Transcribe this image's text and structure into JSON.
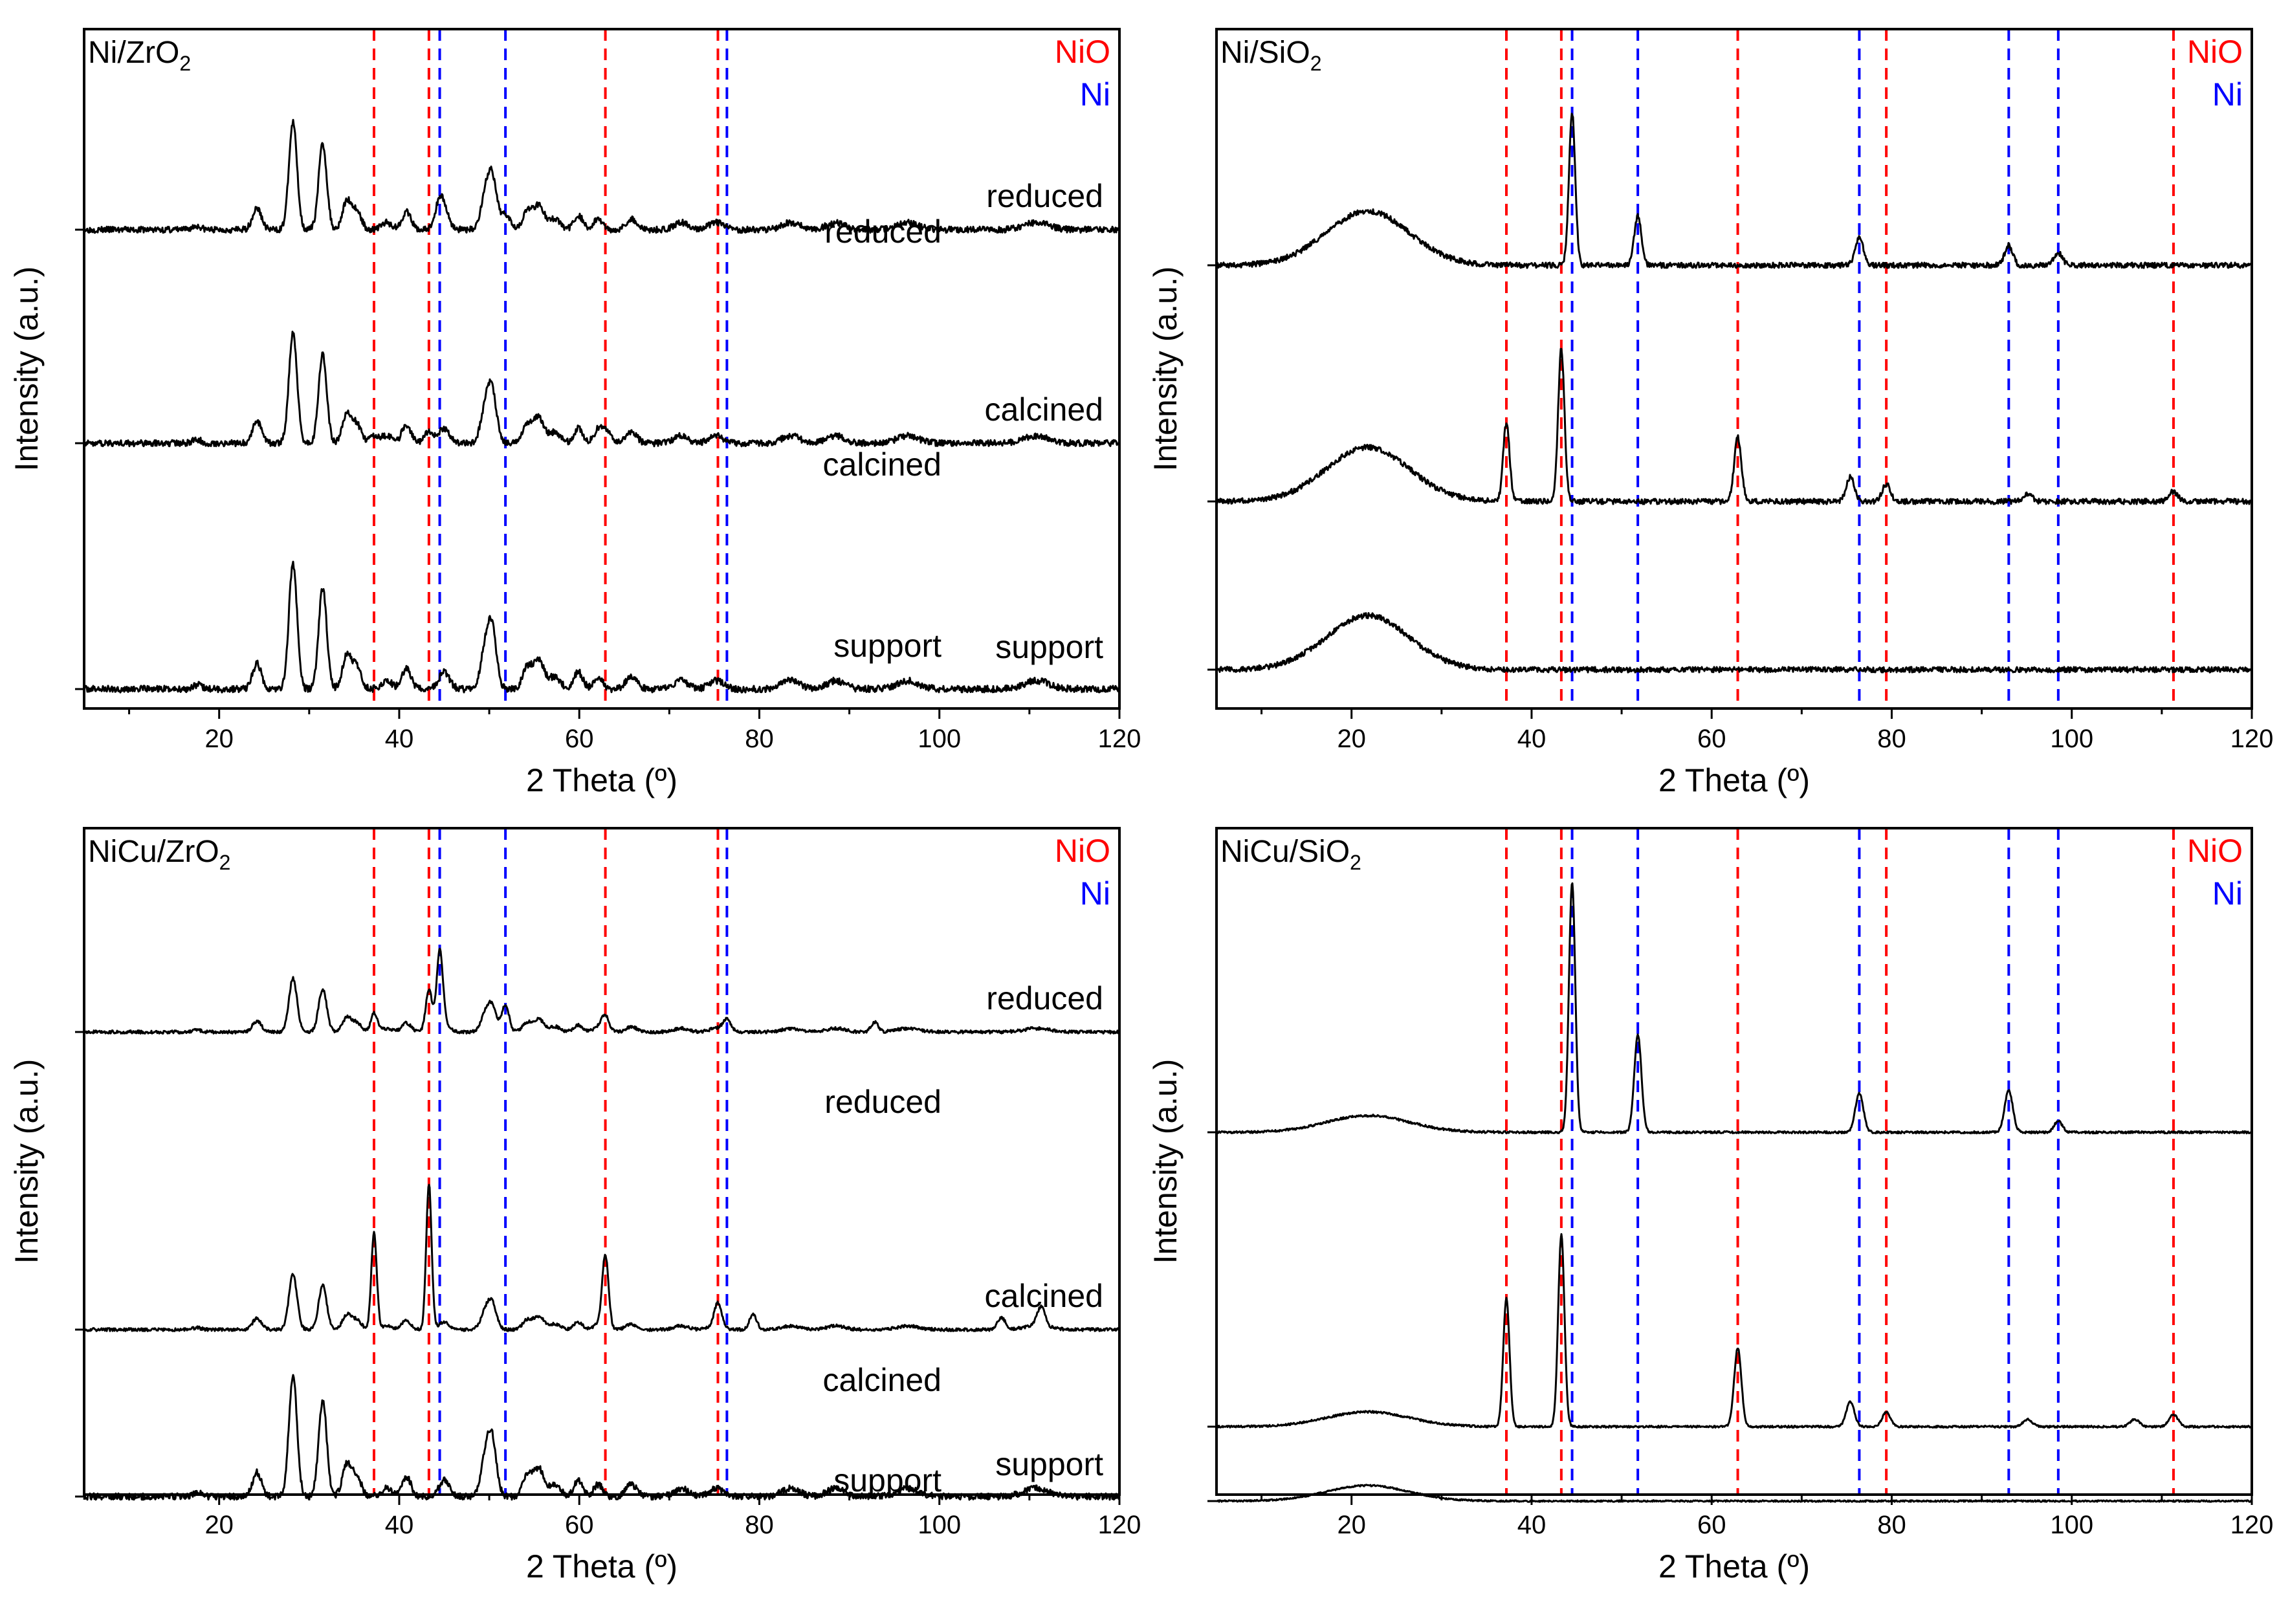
{
  "chart_data": [
    {
      "type": "line",
      "title": "Ni/ZrO2",
      "title_base": "Ni/ZrO",
      "title_sub": "2",
      "xlabel": "2 Theta (º)",
      "ylabel": "Intensity (a.u.)",
      "xlim": [
        5,
        120
      ],
      "xticks": [
        20,
        40,
        60,
        80,
        100,
        120
      ],
      "legend": [
        {
          "label": "NiO",
          "color": "#ff0000"
        },
        {
          "label": "Ni",
          "color": "#0000ff"
        }
      ],
      "reference_lines": [
        {
          "phase": "NiO",
          "color": "#ff0000",
          "x": [
            37.2,
            43.3,
            62.9,
            75.4
          ]
        },
        {
          "phase": "Ni",
          "color": "#0000ff",
          "x": [
            44.5,
            51.8,
            76.4
          ]
        }
      ],
      "support": "zro2",
      "series": [
        {
          "name": "reduced",
          "label_color": "#000000",
          "extra_peaks": [],
          "ni_peaks": [
            [
              44.5,
              6,
              0.5
            ],
            [
              51.8,
              4,
              0.6
            ]
          ]
        },
        {
          "name": "calcined",
          "extra_peaks": [],
          "ni_peaks": [
            [
              37.2,
              2,
              0.5
            ],
            [
              43.3,
              3,
              0.5
            ],
            [
              62.9,
              3,
              0.6
            ]
          ]
        },
        {
          "name": "support",
          "extra_peaks": [],
          "ni_peaks": []
        }
      ]
    },
    {
      "type": "line",
      "title": "Ni/SiO2",
      "title_base": "Ni/SiO",
      "title_sub": "2",
      "xlabel": "2 Theta (º)",
      "ylabel": "Intensity (a.u.)",
      "xlim": [
        5,
        120
      ],
      "xticks": [
        20,
        40,
        60,
        80,
        100,
        120
      ],
      "legend": [
        {
          "label": "NiO",
          "color": "#ff0000"
        },
        {
          "label": "Ni",
          "color": "#0000ff"
        }
      ],
      "reference_lines": [
        {
          "phase": "NiO",
          "color": "#ff0000",
          "x": [
            37.2,
            43.3,
            62.9,
            79.4,
            111.3
          ]
        },
        {
          "phase": "Ni",
          "color": "#0000ff",
          "x": [
            44.5,
            51.8,
            76.4,
            93.0,
            98.5
          ]
        }
      ],
      "support": "sio2",
      "series": [
        {
          "name": "reduced",
          "ni_peaks": [
            [
              44.5,
              62,
              0.35
            ],
            [
              51.8,
              20,
              0.4
            ],
            [
              76.4,
              11,
              0.45
            ],
            [
              93.0,
              8,
              0.45
            ],
            [
              98.5,
              5,
              0.45
            ]
          ]
        },
        {
          "name": "calcined",
          "ni_peaks": [
            [
              37.2,
              32,
              0.35
            ],
            [
              43.3,
              62,
              0.35
            ],
            [
              62.9,
              26,
              0.4
            ],
            [
              75.4,
              10,
              0.45
            ],
            [
              79.4,
              7,
              0.45
            ],
            [
              95.1,
              3,
              0.5
            ],
            [
              111.3,
              4,
              0.5
            ]
          ]
        },
        {
          "name": "support",
          "ni_peaks": []
        }
      ]
    },
    {
      "type": "line",
      "title": "NiCu/ZrO2",
      "title_base": "NiCu/ZrO",
      "title_sub": "2",
      "xlabel": "2 Theta (º)",
      "ylabel": "Intensity (a.u.)",
      "xlim": [
        5,
        120
      ],
      "xticks": [
        20,
        40,
        60,
        80,
        100,
        120
      ],
      "legend": [
        {
          "label": "NiO",
          "color": "#ff0000"
        },
        {
          "label": "Ni",
          "color": "#0000ff"
        }
      ],
      "reference_lines": [
        {
          "phase": "NiO",
          "color": "#ff0000",
          "x": [
            37.2,
            43.3,
            62.9,
            75.4
          ]
        },
        {
          "phase": "Ni",
          "color": "#0000ff",
          "x": [
            44.5,
            51.8,
            76.4
          ]
        }
      ],
      "support": "zro2",
      "series": [
        {
          "name": "reduced",
          "ni_peaks": [
            [
              37.2,
              10,
              0.35
            ],
            [
              43.3,
              22,
              0.35
            ],
            [
              44.5,
              40,
              0.35
            ],
            [
              51.8,
              14,
              0.4
            ],
            [
              62.9,
              8,
              0.4
            ],
            [
              76.4,
              6,
              0.45
            ],
            [
              92.8,
              5,
              0.4
            ]
          ]
        },
        {
          "name": "calcined",
          "ni_peaks": [
            [
              37.2,
              50,
              0.3
            ],
            [
              43.3,
              75,
              0.3
            ],
            [
              62.9,
              38,
              0.35
            ],
            [
              75.4,
              12,
              0.4
            ],
            [
              79.3,
              8,
              0.4
            ],
            [
              106.9,
              6,
              0.45
            ],
            [
              111.3,
              10,
              0.45
            ]
          ]
        },
        {
          "name": "support",
          "ni_peaks": []
        }
      ]
    },
    {
      "type": "line",
      "title": "NiCu/SiO2",
      "title_base": "NiCu/SiO",
      "title_sub": "2",
      "xlabel": "2 Theta (º)",
      "ylabel": "Intensity (a.u.)",
      "xlim": [
        5,
        120
      ],
      "xticks": [
        20,
        40,
        60,
        80,
        100,
        120
      ],
      "legend": [
        {
          "label": "NiO",
          "color": "#ff0000"
        },
        {
          "label": "Ni",
          "color": "#0000ff"
        }
      ],
      "reference_lines": [
        {
          "phase": "NiO",
          "color": "#ff0000",
          "x": [
            37.2,
            43.3,
            62.9,
            79.4,
            111.3
          ]
        },
        {
          "phase": "Ni",
          "color": "#0000ff",
          "x": [
            44.5,
            51.8,
            76.4,
            93.0,
            98.5
          ]
        }
      ],
      "support": "sio2",
      "series": [
        {
          "name": "reduced",
          "ni_peaks": [
            [
              44.5,
              90,
              0.35
            ],
            [
              51.8,
              35,
              0.4
            ],
            [
              76.4,
              14,
              0.45
            ],
            [
              93.0,
              15,
              0.45
            ],
            [
              98.5,
              4,
              0.45
            ]
          ]
        },
        {
          "name": "calcined",
          "ni_peaks": [
            [
              37.2,
              52,
              0.35
            ],
            [
              43.3,
              78,
              0.35
            ],
            [
              62.9,
              32,
              0.4
            ],
            [
              75.4,
              10,
              0.45
            ],
            [
              79.4,
              6,
              0.45
            ],
            [
              95.1,
              3,
              0.5
            ],
            [
              107.0,
              3,
              0.5
            ],
            [
              111.3,
              5,
              0.5
            ]
          ]
        },
        {
          "name": "support",
          "ni_peaks": []
        }
      ]
    }
  ]
}
